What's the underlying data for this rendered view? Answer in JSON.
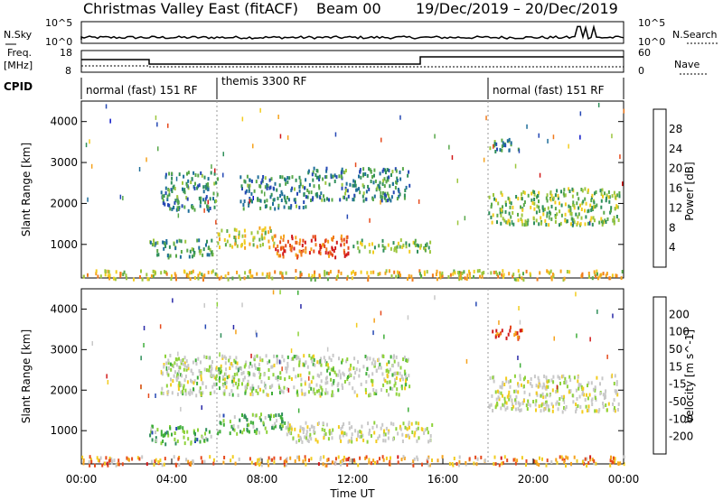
{
  "header": {
    "title": "Christmas Valley East (fitACF)",
    "beam": "Beam 00",
    "date_range": "19/Dec/2019 – 20/Dec/2019"
  },
  "noise_panel": {
    "left_label": "N.Sky",
    "right_label": "N.Search",
    "left_ticks": [
      "10^5",
      "10^0"
    ],
    "right_ticks": [
      "10^5",
      "10^0"
    ]
  },
  "freq_panel": {
    "left_label_1": "Freq.",
    "left_label_2": "[MHz]",
    "right_label": "Nave",
    "left_ticks": [
      "18",
      "8"
    ],
    "right_ticks": [
      "60",
      "0"
    ]
  },
  "cpid": {
    "label": "CPID",
    "segments": [
      {
        "start_hour": 0,
        "end_hour": 6,
        "text": "normal (fast) 151 RF"
      },
      {
        "start_hour": 6,
        "end_hour": 18,
        "text": "themis 3300 RF"
      },
      {
        "start_hour": 18,
        "end_hour": 24,
        "text": "normal (fast) 151 RF"
      }
    ]
  },
  "colors": {
    "power_scale": [
      "#0a14c8",
      "#2548b4",
      "#1f6e9a",
      "#2f8f5a",
      "#58a84a",
      "#9cc63e",
      "#f2cc1f",
      "#f5a21c",
      "#f07a1c",
      "#e64a1c",
      "#d21a1a"
    ],
    "velocity_scale": [
      "#d21a1a",
      "#e64a1c",
      "#f5a21c",
      "#f2cc1f",
      "#c8c8c8",
      "#c8c8c8",
      "#8ed23a",
      "#3fae3a",
      "#2f8f5a",
      "#2548b4",
      "#2a2aa8"
    ]
  },
  "chart_data": [
    {
      "type": "heatmap",
      "name": "power",
      "x_unit_label": "Time UT",
      "y_label": "Slant Range [km]",
      "colorbar_label": "Power [dB]",
      "colorbar_ticks": [
        "4",
        "8",
        "12",
        "16",
        "20",
        "24",
        "28"
      ],
      "xlim_hours": [
        0,
        24
      ],
      "ylim_km": [
        180,
        4500
      ],
      "y_ticks": [
        "1000",
        "2000",
        "3000",
        "4000"
      ],
      "regions": [
        {
          "t0": 3.0,
          "t1": 5.8,
          "r0": 700,
          "r1": 1150,
          "level": 0.35
        },
        {
          "t0": 6.0,
          "t1": 8.5,
          "r0": 950,
          "r1": 1450,
          "level": 0.55
        },
        {
          "t0": 8.5,
          "t1": 12.0,
          "r0": 700,
          "r1": 1250,
          "level": 0.85
        },
        {
          "t0": 12.0,
          "t1": 15.5,
          "r0": 850,
          "r1": 1150,
          "level": 0.45
        },
        {
          "t0": 3.5,
          "t1": 6.0,
          "r0": 1850,
          "r1": 2800,
          "level": 0.3
        },
        {
          "t0": 7.0,
          "t1": 10.0,
          "r0": 1900,
          "r1": 2700,
          "level": 0.3
        },
        {
          "t0": 10.0,
          "t1": 14.5,
          "r0": 2100,
          "r1": 2900,
          "level": 0.3
        },
        {
          "t0": 18.0,
          "t1": 23.8,
          "r0": 1500,
          "r1": 2400,
          "level": 0.45
        },
        {
          "t0": 18.0,
          "t1": 19.5,
          "r0": 3300,
          "r1": 3600,
          "level": 0.3
        },
        {
          "t0": 0.0,
          "t1": 24.0,
          "r0": 180,
          "r1": 400,
          "level": 0.6
        }
      ]
    },
    {
      "type": "heatmap",
      "name": "velocity",
      "x_unit_label": "Time UT",
      "y_label": "Slant Range [km]",
      "colorbar_label": "Velocity [m s^-1]",
      "colorbar_ticks": [
        "200",
        "100",
        "50",
        "15",
        "-15",
        "-50",
        "-100",
        "-200"
      ],
      "xlim_hours": [
        0,
        24
      ],
      "ylim_km": [
        180,
        4500
      ],
      "y_ticks": [
        "1000",
        "2000",
        "3000",
        "4000"
      ],
      "x_ticks": [
        "00:00",
        "04:00",
        "08:00",
        "12:00",
        "16:00",
        "20:00",
        "00:00"
      ],
      "regions": [
        {
          "t0": 3.0,
          "t1": 5.8,
          "r0": 700,
          "r1": 1150,
          "level": 0.68
        },
        {
          "t0": 6.0,
          "t1": 9.0,
          "r0": 950,
          "r1": 1450,
          "level": 0.65
        },
        {
          "t0": 9.0,
          "t1": 15.5,
          "r0": 750,
          "r1": 1250,
          "level": 0.45
        },
        {
          "t0": 3.5,
          "t1": 14.5,
          "r0": 1900,
          "r1": 2900,
          "level": 0.5
        },
        {
          "t0": 18.0,
          "t1": 23.8,
          "r0": 1500,
          "r1": 2400,
          "level": 0.45
        },
        {
          "t0": 18.0,
          "t1": 19.5,
          "r0": 3300,
          "r1": 3600,
          "level": 0.1
        },
        {
          "t0": 0.0,
          "t1": 24.0,
          "r0": 180,
          "r1": 400,
          "level": 0.25
        }
      ]
    }
  ]
}
